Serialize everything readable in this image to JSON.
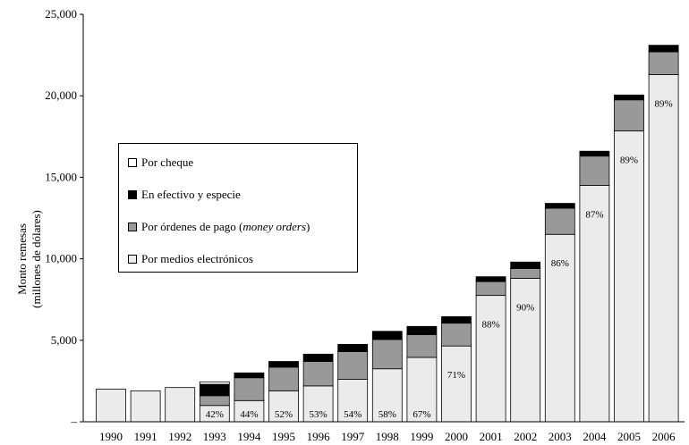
{
  "chart_data": {
    "type": "bar",
    "stacked": true,
    "title": "",
    "xlabel": "",
    "ylabel": "Monto remesas",
    "ylabel_sub": "(millones de dólares)",
    "ylim": [
      0,
      25000
    ],
    "yticks": [
      0,
      5000,
      10000,
      15000,
      20000,
      25000
    ],
    "ytick_labels": [
      "–",
      "5,000",
      "10,000",
      "15,000",
      "20,000",
      "25,000"
    ],
    "categories": [
      "1990",
      "1991",
      "1992",
      "1993",
      "1994",
      "1995",
      "1996",
      "1997",
      "1998",
      "1999",
      "2000",
      "2001",
      "2002",
      "2003",
      "2004",
      "2005",
      "2006"
    ],
    "series": [
      {
        "name": "Por medios electrónicos",
        "key": "electronic",
        "color": "#ebebeb",
        "values": [
          2000,
          1900,
          2100,
          1000,
          1300,
          1900,
          2200,
          2600,
          3250,
          3950,
          4650,
          7750,
          8800,
          11500,
          14500,
          17850,
          21300
        ]
      },
      {
        "name": "Por órdenes de pago",
        "name_italic": "money orders",
        "key": "money_orders",
        "color": "#999999",
        "values": [
          0,
          0,
          0,
          600,
          1400,
          1450,
          1500,
          1700,
          1800,
          1400,
          1400,
          850,
          600,
          1600,
          1800,
          1900,
          1400
        ]
      },
      {
        "name": "En efectivo y especie",
        "key": "cash",
        "color": "#000000",
        "values": [
          0,
          0,
          0,
          700,
          300,
          350,
          450,
          450,
          500,
          500,
          400,
          300,
          400,
          300,
          300,
          300,
          400
        ]
      },
      {
        "name": "Por cheque",
        "key": "check",
        "color": "#ffffff",
        "values": [
          0,
          0,
          0,
          150,
          0,
          0,
          0,
          0,
          0,
          0,
          0,
          0,
          0,
          0,
          0,
          0,
          0
        ]
      }
    ],
    "bar_labels": [
      "",
      "",
      "",
      "42%",
      "44%",
      "52%",
      "53%",
      "54%",
      "58%",
      "67%",
      "71%",
      "88%",
      "90%",
      "86%",
      "87%",
      "89%",
      "89%"
    ],
    "legend_position": "upper-left",
    "grid": false
  }
}
